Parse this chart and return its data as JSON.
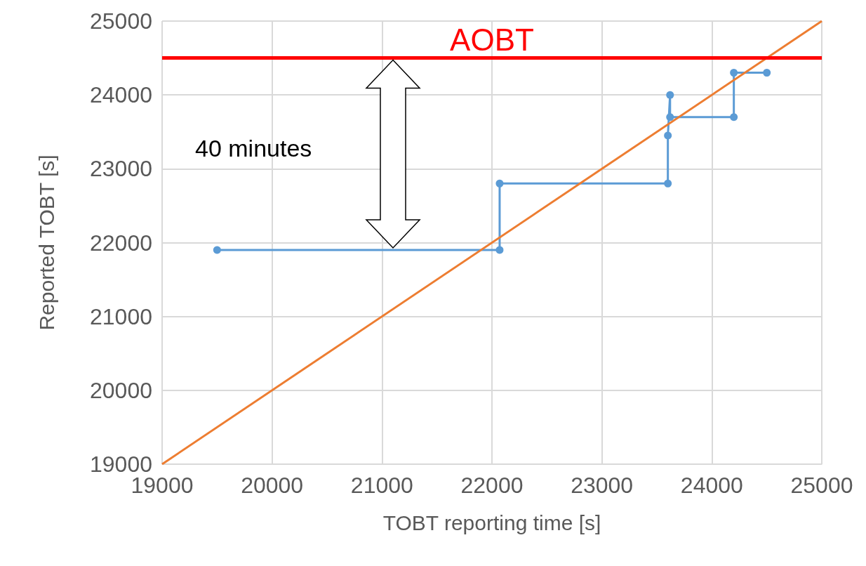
{
  "chart_data": {
    "type": "line",
    "xlabel": "TOBT reporting time [s]",
    "ylabel": "Reported TOBT [s]",
    "xlim": [
      19000,
      25000
    ],
    "xticks": [
      19000,
      20000,
      21000,
      22000,
      23000,
      24000,
      25000
    ],
    "ylim": [
      19000,
      25000
    ],
    "yticks": [
      19000,
      20000,
      21000,
      22000,
      23000,
      24000,
      25000
    ],
    "grid": true,
    "series": [
      {
        "color": "#5b9bd5",
        "marker": "circle",
        "x": [
          19500,
          22070,
          22070,
          23600,
          23600,
          23620,
          23620,
          24200,
          24200,
          24500
        ],
        "values": [
          21900,
          21900,
          22800,
          22800,
          23450,
          24000,
          23700,
          23700,
          24300,
          24300
        ]
      },
      {
        "color": "#ed7d31",
        "marker": "none",
        "x": [
          19000,
          25000
        ],
        "values": [
          19000,
          25000
        ]
      }
    ],
    "ref_lines": [
      {
        "axis": "y",
        "value": 24500,
        "label": "AOBT",
        "color": "#ff0000"
      }
    ],
    "annotations": [
      "40 minutes"
    ]
  }
}
